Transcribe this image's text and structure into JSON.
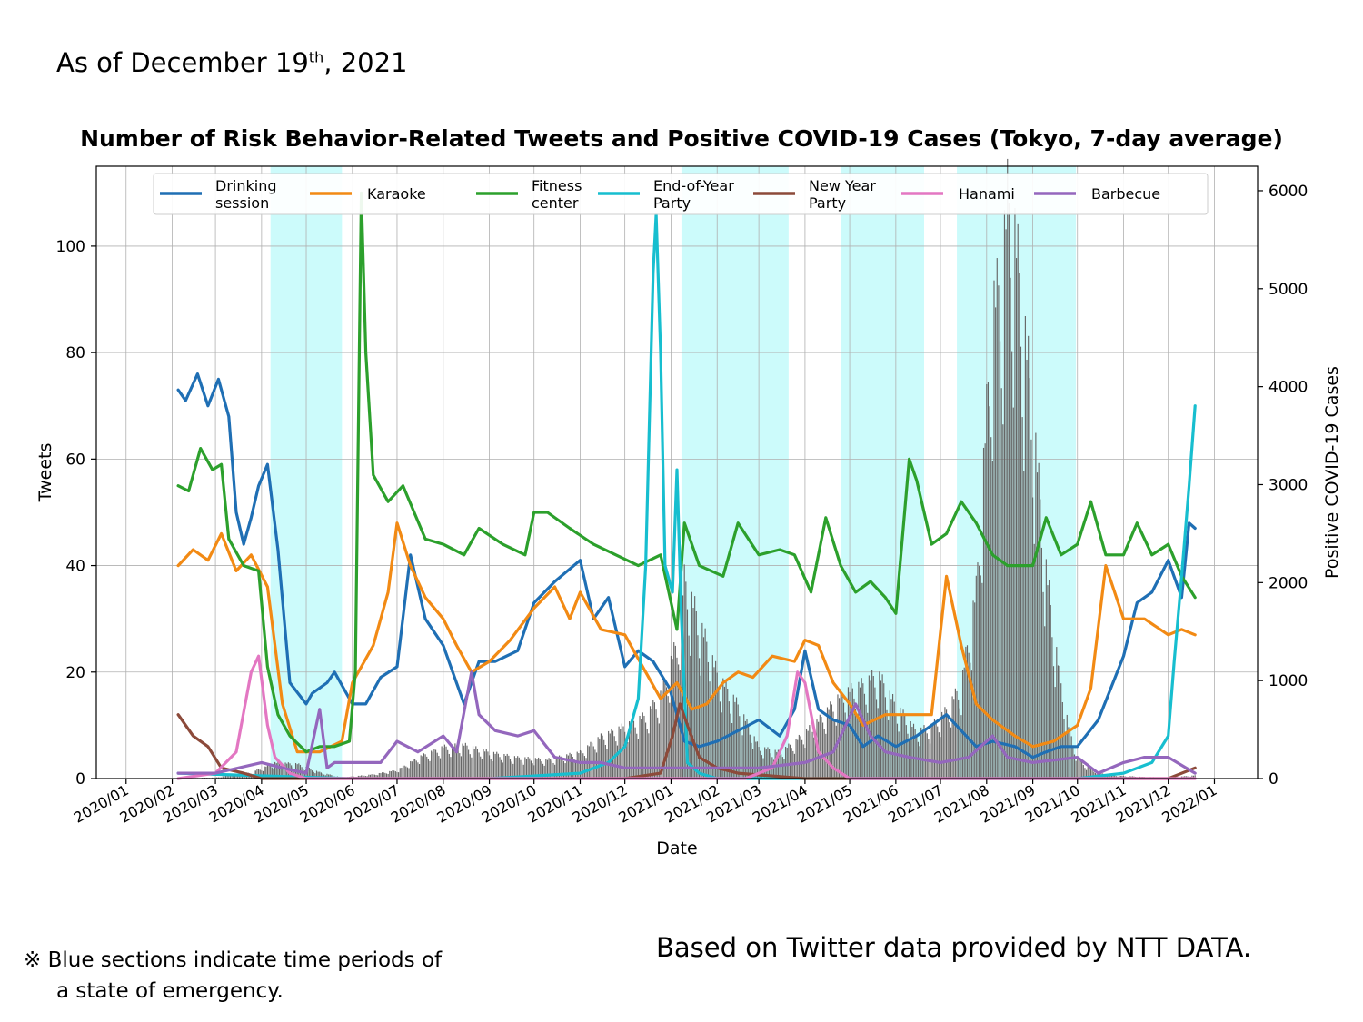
{
  "header": {
    "as_of_prefix": "As of December 19",
    "as_of_suffix": "th",
    "as_of_rest": ", 2021"
  },
  "footer": {
    "note_mark": "※",
    "note_line1": "Blue sections indicate time periods of",
    "note_line2": "a state of emergency.",
    "credit": "Based on Twitter data provided by NTT DATA."
  },
  "chart_data": {
    "type": "line",
    "title": "Number of Risk Behavior-Related Tweets and Positive COVID-19 Cases (Tokyo, 7-day average)",
    "xlabel": "Date",
    "ylabel": "Tweets",
    "y2label": "Positive COVID-19 Cases",
    "xlim": [
      "2019-12-12",
      "2022-01-30"
    ],
    "ylim": [
      0,
      115
    ],
    "y2lim": [
      0,
      6250
    ],
    "yticks": [
      0,
      20,
      40,
      60,
      80,
      100
    ],
    "y2ticks": [
      0,
      1000,
      2000,
      3000,
      4000,
      5000,
      6000
    ],
    "xticks": [
      "2020-01-01",
      "2020-02-01",
      "2020-03-01",
      "2020-04-01",
      "2020-05-01",
      "2020-06-01",
      "2020-07-01",
      "2020-08-01",
      "2020-09-01",
      "2020-10-01",
      "2020-11-01",
      "2020-12-01",
      "2021-01-01",
      "2021-02-01",
      "2021-03-01",
      "2021-04-01",
      "2021-05-01",
      "2021-06-01",
      "2021-07-01",
      "2021-08-01",
      "2021-09-01",
      "2021-10-01",
      "2021-11-01",
      "2021-12-01",
      "2022-01-01"
    ],
    "xticklabels": [
      "2020/01",
      "2020/02",
      "2020/03",
      "2020/04",
      "2020/05",
      "2020/06",
      "2020/07",
      "2020/08",
      "2020/09",
      "2020/10",
      "2020/11",
      "2020/12",
      "2021/01",
      "2021/02",
      "2021/03",
      "2021/04",
      "2021/05",
      "2021/06",
      "2021/07",
      "2021/08",
      "2021/09",
      "2021/10",
      "2021/11",
      "2021/12",
      "2022/01"
    ],
    "grid": true,
    "legend_position": "top",
    "emergency_periods": [
      [
        "2020-04-07",
        "2020-05-25"
      ],
      [
        "2021-01-08",
        "2021-03-21"
      ],
      [
        "2021-04-25",
        "2021-06-20"
      ],
      [
        "2021-07-12",
        "2021-09-30"
      ]
    ],
    "emergency_color": "#ccfbfb",
    "cases": {
      "type": "bar",
      "color": "#666666",
      "x": [
        "2020-02-05",
        "2020-03-01",
        "2020-03-25",
        "2020-04-10",
        "2020-04-25",
        "2020-05-10",
        "2020-05-25",
        "2020-06-15",
        "2020-07-01",
        "2020-07-15",
        "2020-08-01",
        "2020-08-15",
        "2020-09-01",
        "2020-09-20",
        "2020-10-10",
        "2020-11-01",
        "2020-11-15",
        "2020-12-01",
        "2020-12-15",
        "2020-12-25",
        "2021-01-05",
        "2021-01-10",
        "2021-01-20",
        "2021-02-01",
        "2021-02-15",
        "2021-03-01",
        "2021-03-15",
        "2021-03-25",
        "2021-04-10",
        "2021-04-25",
        "2021-05-10",
        "2021-05-20",
        "2021-06-01",
        "2021-06-15",
        "2021-06-25",
        "2021-07-05",
        "2021-07-15",
        "2021-07-25",
        "2021-08-01",
        "2021-08-05",
        "2021-08-10",
        "2021-08-15",
        "2021-08-20",
        "2021-08-25",
        "2021-09-01",
        "2021-09-05",
        "2021-09-10",
        "2021-09-15",
        "2021-09-20",
        "2021-09-25",
        "2021-10-01",
        "2021-10-10",
        "2021-10-20",
        "2021-11-01",
        "2021-11-15",
        "2021-12-01",
        "2021-12-19"
      ],
      "values": [
        2,
        10,
        60,
        150,
        140,
        60,
        10,
        40,
        80,
        200,
        300,
        320,
        250,
        200,
        180,
        250,
        400,
        500,
        600,
        800,
        1300,
        1900,
        1500,
        1000,
        700,
        300,
        250,
        350,
        550,
        800,
        900,
        1000,
        700,
        450,
        500,
        650,
        900,
        1800,
        3500,
        4500,
        4700,
        5500,
        5200,
        4500,
        3500,
        2800,
        2000,
        1400,
        900,
        500,
        200,
        80,
        40,
        25,
        15,
        10,
        30
      ]
    },
    "series": [
      {
        "name": "Drinking\nsession",
        "color": "#1f6fb4",
        "axis": "left",
        "x": [
          "2020-02-05",
          "2020-02-10",
          "2020-02-18",
          "2020-02-25",
          "2020-03-03",
          "2020-03-10",
          "2020-03-15",
          "2020-03-20",
          "2020-03-25",
          "2020-03-30",
          "2020-04-05",
          "2020-04-12",
          "2020-04-20",
          "2020-05-01",
          "2020-05-05",
          "2020-05-15",
          "2020-05-20",
          "2020-06-01",
          "2020-06-10",
          "2020-06-20",
          "2020-07-01",
          "2020-07-10",
          "2020-07-20",
          "2020-08-01",
          "2020-08-15",
          "2020-08-25",
          "2020-09-05",
          "2020-09-20",
          "2020-10-01",
          "2020-10-15",
          "2020-11-01",
          "2020-11-10",
          "2020-11-20",
          "2020-12-01",
          "2020-12-10",
          "2020-12-20",
          "2020-12-31",
          "2021-01-10",
          "2021-01-20",
          "2021-02-01",
          "2021-02-15",
          "2021-03-01",
          "2021-03-15",
          "2021-03-25",
          "2021-04-01",
          "2021-04-10",
          "2021-04-20",
          "2021-05-01",
          "2021-05-10",
          "2021-05-20",
          "2021-06-01",
          "2021-06-15",
          "2021-06-25",
          "2021-07-05",
          "2021-07-15",
          "2021-07-25",
          "2021-08-05",
          "2021-08-20",
          "2021-09-01",
          "2021-09-10",
          "2021-09-20",
          "2021-10-01",
          "2021-10-15",
          "2021-11-01",
          "2021-11-10",
          "2021-11-20",
          "2021-12-01",
          "2021-12-10",
          "2021-12-15",
          "2021-12-19"
        ],
        "values": [
          73,
          71,
          76,
          70,
          75,
          68,
          50,
          44,
          49,
          55,
          59,
          43,
          18,
          14,
          16,
          18,
          20,
          14,
          14,
          19,
          21,
          42,
          30,
          25,
          14,
          22,
          22,
          24,
          33,
          37,
          41,
          30,
          34,
          21,
          24,
          22,
          17,
          7,
          6,
          7,
          9,
          11,
          8,
          13,
          24,
          13,
          11,
          10,
          6,
          8,
          6,
          8,
          10,
          12,
          9,
          6,
          7,
          6,
          4,
          5,
          6,
          6,
          11,
          23,
          33,
          35,
          41,
          34,
          48,
          47
        ]
      },
      {
        "name": "Karaoke",
        "color": "#f28a14",
        "axis": "left",
        "x": [
          "2020-02-05",
          "2020-02-15",
          "2020-02-25",
          "2020-03-05",
          "2020-03-15",
          "2020-03-25",
          "2020-04-05",
          "2020-04-15",
          "2020-04-25",
          "2020-05-10",
          "2020-05-25",
          "2020-06-01",
          "2020-06-15",
          "2020-06-25",
          "2020-07-01",
          "2020-07-10",
          "2020-07-20",
          "2020-08-01",
          "2020-08-10",
          "2020-08-20",
          "2020-09-01",
          "2020-09-15",
          "2020-10-01",
          "2020-10-15",
          "2020-10-25",
          "2020-11-01",
          "2020-11-15",
          "2020-12-01",
          "2020-12-15",
          "2020-12-25",
          "2021-01-05",
          "2021-01-15",
          "2021-01-25",
          "2021-02-05",
          "2021-02-15",
          "2021-02-25",
          "2021-03-10",
          "2021-03-25",
          "2021-04-01",
          "2021-04-10",
          "2021-04-20",
          "2021-05-01",
          "2021-05-10",
          "2021-05-25",
          "2021-06-10",
          "2021-06-25",
          "2021-07-05",
          "2021-07-15",
          "2021-07-25",
          "2021-08-05",
          "2021-08-20",
          "2021-09-01",
          "2021-09-15",
          "2021-10-01",
          "2021-10-10",
          "2021-10-20",
          "2021-11-01",
          "2021-11-15",
          "2021-12-01",
          "2021-12-10",
          "2021-12-19"
        ],
        "values": [
          40,
          43,
          41,
          46,
          39,
          42,
          36,
          14,
          5,
          5,
          7,
          18,
          25,
          35,
          48,
          40,
          34,
          30,
          25,
          20,
          22,
          26,
          32,
          36,
          30,
          35,
          28,
          27,
          20,
          15,
          18,
          13,
          14,
          18,
          20,
          19,
          23,
          22,
          26,
          25,
          18,
          14,
          10,
          12,
          12,
          12,
          38,
          25,
          14,
          11,
          8,
          6,
          7,
          10,
          17,
          40,
          30,
          30,
          27,
          28,
          27
        ]
      },
      {
        "name": "Fitness\ncenter",
        "color": "#2ca02c",
        "axis": "left",
        "x": [
          "2020-02-05",
          "2020-02-12",
          "2020-02-20",
          "2020-02-28",
          "2020-03-05",
          "2020-03-10",
          "2020-03-20",
          "2020-03-30",
          "2020-04-05",
          "2020-04-12",
          "2020-04-20",
          "2020-05-01",
          "2020-05-10",
          "2020-05-20",
          "2020-05-30",
          "2020-06-03",
          "2020-06-07",
          "2020-06-10",
          "2020-06-15",
          "2020-06-25",
          "2020-07-05",
          "2020-07-20",
          "2020-08-01",
          "2020-08-15",
          "2020-08-25",
          "2020-09-10",
          "2020-09-25",
          "2020-10-01",
          "2020-10-10",
          "2020-10-25",
          "2020-11-10",
          "2020-11-25",
          "2020-12-10",
          "2020-12-25",
          "2021-01-05",
          "2021-01-10",
          "2021-01-20",
          "2021-02-05",
          "2021-02-15",
          "2021-03-01",
          "2021-03-15",
          "2021-03-25",
          "2021-04-05",
          "2021-04-15",
          "2021-04-25",
          "2021-05-05",
          "2021-05-15",
          "2021-05-25",
          "2021-06-01",
          "2021-06-10",
          "2021-06-15",
          "2021-06-25",
          "2021-07-05",
          "2021-07-15",
          "2021-07-25",
          "2021-08-05",
          "2021-08-15",
          "2021-09-01",
          "2021-09-10",
          "2021-09-20",
          "2021-10-01",
          "2021-10-10",
          "2021-10-20",
          "2021-11-01",
          "2021-11-10",
          "2021-11-20",
          "2021-12-01",
          "2021-12-10",
          "2021-12-19"
        ],
        "values": [
          55,
          54,
          62,
          58,
          59,
          45,
          40,
          39,
          21,
          12,
          8,
          5,
          6,
          6,
          7,
          20,
          110,
          80,
          57,
          52,
          55,
          45,
          44,
          42,
          47,
          44,
          42,
          50,
          50,
          47,
          44,
          42,
          40,
          42,
          28,
          48,
          40,
          38,
          48,
          42,
          43,
          42,
          35,
          49,
          40,
          35,
          37,
          34,
          31,
          60,
          56,
          44,
          46,
          52,
          48,
          42,
          40,
          40,
          49,
          42,
          44,
          52,
          42,
          42,
          48,
          42,
          44,
          38,
          34
        ]
      },
      {
        "name": "End-of-Year\nParty",
        "color": "#17becf",
        "axis": "left",
        "x": [
          "2020-02-05",
          "2020-06-01",
          "2020-09-01",
          "2020-11-01",
          "2020-11-20",
          "2020-12-01",
          "2020-12-10",
          "2020-12-15",
          "2020-12-20",
          "2020-12-22",
          "2020-12-25",
          "2020-12-28",
          "2021-01-02",
          "2021-01-05",
          "2021-01-08",
          "2021-01-12",
          "2021-01-20",
          "2021-02-01",
          "2021-06-01",
          "2021-10-01",
          "2021-11-01",
          "2021-11-20",
          "2021-12-01",
          "2021-12-05",
          "2021-12-10",
          "2021-12-15",
          "2021-12-19"
        ],
        "values": [
          1,
          0,
          0,
          1,
          3,
          6,
          15,
          40,
          95,
          106,
          80,
          40,
          35,
          58,
          30,
          3,
          1,
          0,
          0,
          0,
          1,
          3,
          8,
          22,
          38,
          55,
          70
        ]
      },
      {
        "name": "New Year\nParty",
        "color": "#8c4a3a",
        "axis": "left",
        "x": [
          "2020-02-05",
          "2020-02-15",
          "2020-02-25",
          "2020-03-05",
          "2020-03-20",
          "2020-04-01",
          "2020-12-01",
          "2020-12-25",
          "2021-01-02",
          "2021-01-07",
          "2021-01-12",
          "2021-01-20",
          "2021-02-01",
          "2021-02-15",
          "2021-04-01",
          "2021-12-01",
          "2021-12-19"
        ],
        "values": [
          12,
          8,
          6,
          2,
          1,
          0,
          0,
          1,
          8,
          14,
          10,
          4,
          2,
          1,
          0,
          0,
          2
        ]
      },
      {
        "name": "Hanami",
        "color": "#e377c2",
        "axis": "left",
        "x": [
          "2020-02-05",
          "2020-03-01",
          "2020-03-15",
          "2020-03-25",
          "2020-03-30",
          "2020-04-05",
          "2020-04-10",
          "2020-04-20",
          "2020-05-01",
          "2021-02-20",
          "2021-03-10",
          "2021-03-20",
          "2021-03-27",
          "2021-04-01",
          "2021-04-10",
          "2021-04-20",
          "2021-05-01",
          "2021-12-19"
        ],
        "values": [
          0,
          1,
          5,
          20,
          23,
          10,
          4,
          1,
          0,
          0,
          2,
          8,
          20,
          18,
          5,
          2,
          0,
          0
        ]
      },
      {
        "name": "Barbecue",
        "color": "#9467bd",
        "axis": "left",
        "x": [
          "2020-02-05",
          "2020-03-01",
          "2020-04-01",
          "2020-04-15",
          "2020-05-01",
          "2020-05-10",
          "2020-05-15",
          "2020-05-20",
          "2020-06-01",
          "2020-06-20",
          "2020-07-01",
          "2020-07-15",
          "2020-08-01",
          "2020-08-10",
          "2020-08-20",
          "2020-08-25",
          "2020-09-05",
          "2020-09-20",
          "2020-10-01",
          "2020-10-15",
          "2020-11-01",
          "2020-11-15",
          "2020-12-01",
          "2021-01-01",
          "2021-03-01",
          "2021-04-01",
          "2021-04-20",
          "2021-05-05",
          "2021-05-15",
          "2021-05-25",
          "2021-06-10",
          "2021-07-01",
          "2021-07-20",
          "2021-08-05",
          "2021-08-15",
          "2021-09-01",
          "2021-10-01",
          "2021-10-15",
          "2021-11-01",
          "2021-11-15",
          "2021-12-01",
          "2021-12-19"
        ],
        "values": [
          1,
          1,
          3,
          2,
          1,
          13,
          2,
          3,
          3,
          3,
          7,
          5,
          8,
          5,
          20,
          12,
          9,
          8,
          9,
          4,
          3,
          3,
          2,
          2,
          2,
          3,
          5,
          14,
          8,
          5,
          4,
          3,
          4,
          8,
          4,
          3,
          4,
          1,
          3,
          4,
          4,
          1
        ]
      }
    ]
  }
}
